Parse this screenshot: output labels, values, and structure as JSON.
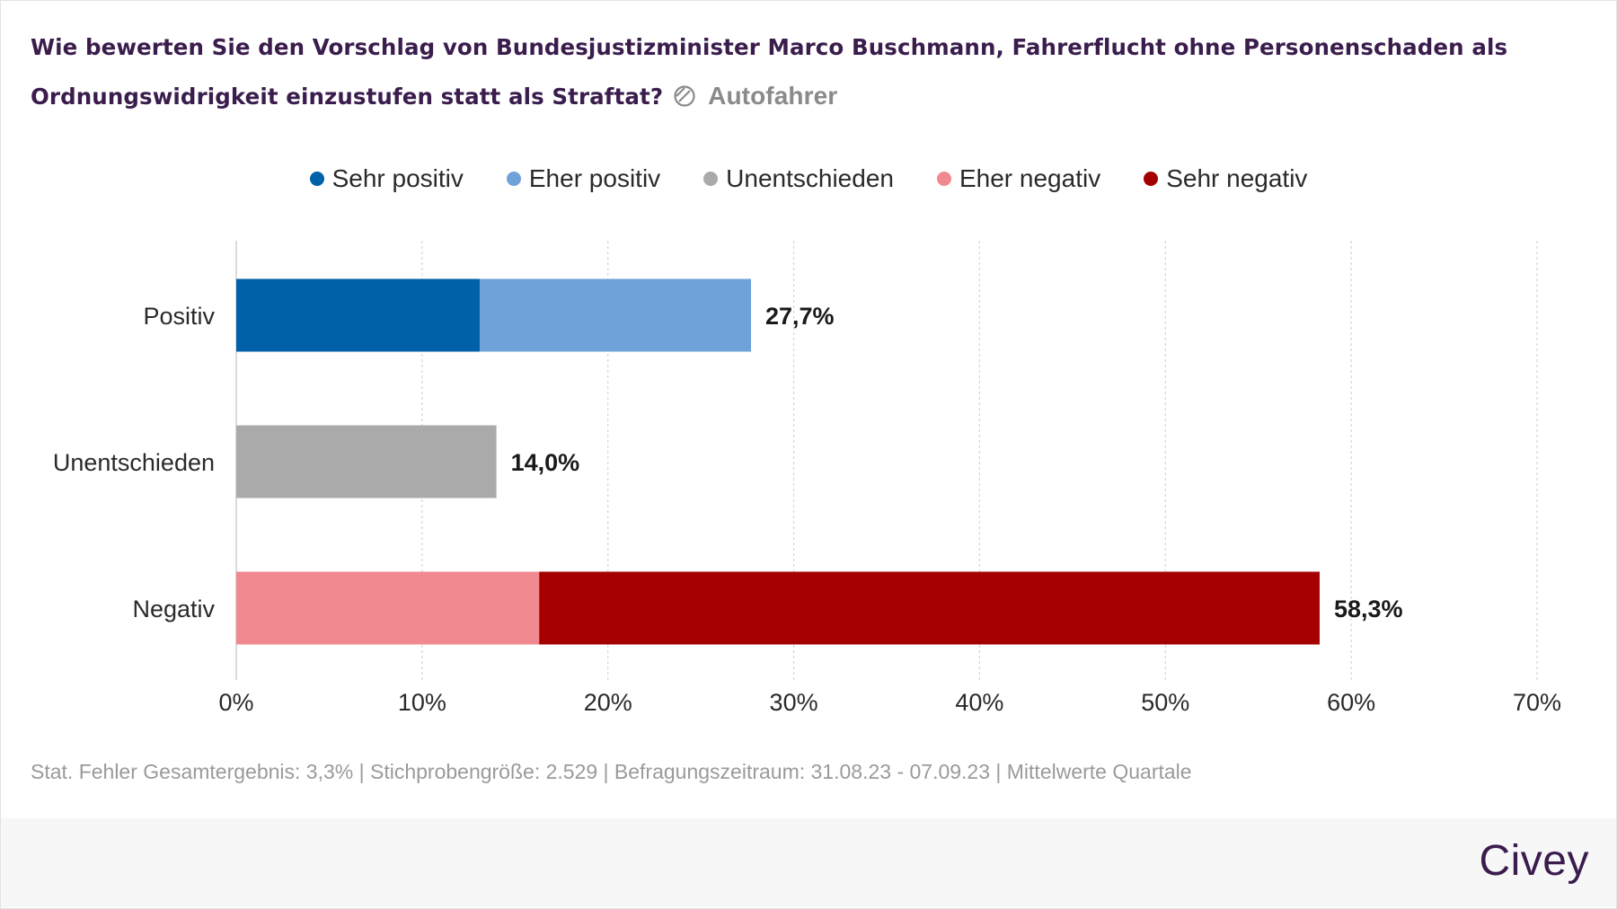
{
  "title_line1": "Wie bewerten Sie den Vorschlag von Bundesjustizminister Marco Buschmann, Fahrerflucht ohne Personenschaden als",
  "title_line2": "Ordnungswidrigkeit einzustufen statt als Straftat?",
  "filter": {
    "icon": "filter-circle-icon",
    "label": "Autofahrer"
  },
  "footnote": "Stat. Fehler Gesamtergebnis: 3,3% | Stichprobengröße: 2.529 | Befragungszeitraum: 31.08.23 - 07.09.23 | Mittelwerte Quartale",
  "brand": "Civey",
  "colors": {
    "title": "#3a1d4d",
    "sehr_positiv": "#0060a8",
    "eher_positiv": "#6fa2d8",
    "unentschieden": "#aaaaaa",
    "eher_negativ": "#f08a90",
    "sehr_negativ": "#a50000"
  },
  "chart_data": {
    "type": "bar",
    "orientation": "horizontal",
    "stacked": true,
    "categories": [
      "Positiv",
      "Unentschieden",
      "Negativ"
    ],
    "series": [
      {
        "name": "Sehr positiv",
        "color": "#0060a8",
        "values": [
          13.1,
          0,
          0
        ]
      },
      {
        "name": "Eher positiv",
        "color": "#6fa2d8",
        "values": [
          14.6,
          0,
          0
        ]
      },
      {
        "name": "Unentschieden",
        "color": "#aaaaaa",
        "values": [
          0,
          14.0,
          0
        ]
      },
      {
        "name": "Eher negativ",
        "color": "#f08a90",
        "values": [
          0,
          0,
          16.3
        ]
      },
      {
        "name": "Sehr negativ",
        "color": "#a50000",
        "values": [
          0,
          0,
          42.0
        ]
      }
    ],
    "totals": [
      27.7,
      14.0,
      58.3
    ],
    "total_labels": [
      "27,7%",
      "14,0%",
      "58,3%"
    ],
    "x_ticks": [
      0,
      10,
      20,
      30,
      40,
      50,
      60,
      70
    ],
    "x_tick_labels": [
      "0%",
      "10%",
      "20%",
      "30%",
      "40%",
      "50%",
      "60%",
      "70%"
    ],
    "xlim": [
      0,
      70
    ],
    "grid": "vertical dotted",
    "legend_position": "top-center"
  }
}
